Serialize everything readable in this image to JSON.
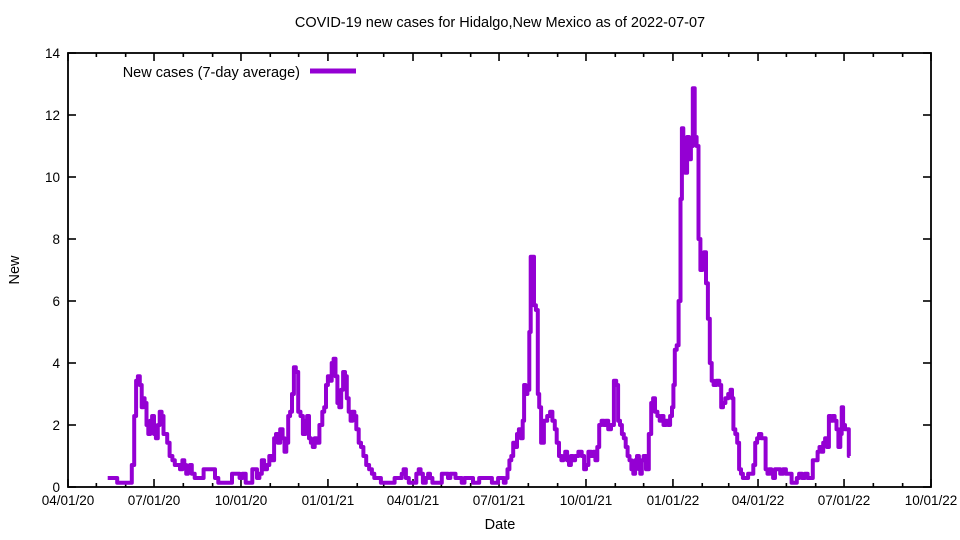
{
  "chart_data": {
    "type": "line",
    "title": "COVID-19 new cases for Hidalgo,New Mexico as of 2022-07-07",
    "xlabel": "Date",
    "ylabel": "New",
    "legend_label": "New cases (7-day average)",
    "legend_position": "top-left-inside",
    "grid": "off",
    "line_color": "#9400D3",
    "axis_color": "#000000",
    "ylim": [
      0,
      14
    ],
    "y_ticks": [
      0,
      2,
      4,
      6,
      8,
      10,
      12,
      14
    ],
    "xlim": [
      "2020-04-01",
      "2022-10-01"
    ],
    "x_ticks": [
      {
        "label": "04/01/20",
        "date": "2020-04-01"
      },
      {
        "label": "07/01/20",
        "date": "2020-07-01"
      },
      {
        "label": "10/01/20",
        "date": "2020-10-01"
      },
      {
        "label": "01/01/21",
        "date": "2021-01-01"
      },
      {
        "label": "04/01/21",
        "date": "2021-04-01"
      },
      {
        "label": "07/01/21",
        "date": "2021-07-01"
      },
      {
        "label": "10/01/21",
        "date": "2021-10-01"
      },
      {
        "label": "01/01/22",
        "date": "2022-01-01"
      },
      {
        "label": "04/01/22",
        "date": "2022-04-01"
      },
      {
        "label": "07/01/22",
        "date": "2022-07-01"
      },
      {
        "label": "10/01/22",
        "date": "2022-10-01"
      }
    ],
    "x_minor_ticks": "monthly",
    "points": [
      [
        "2020-05-13",
        0.29
      ],
      [
        "2020-05-22",
        0.29
      ],
      [
        "2020-05-24",
        0.14
      ],
      [
        "2020-06-06",
        0.14
      ],
      [
        "2020-06-09",
        0.71
      ],
      [
        "2020-06-11",
        2.29
      ],
      [
        "2020-06-13",
        3.43
      ],
      [
        "2020-06-15",
        3.57
      ],
      [
        "2020-06-17",
        3.29
      ],
      [
        "2020-06-19",
        2.57
      ],
      [
        "2020-06-20",
        2.86
      ],
      [
        "2020-06-22",
        2.71
      ],
      [
        "2020-06-24",
        2.0
      ],
      [
        "2020-06-26",
        1.71
      ],
      [
        "2020-06-28",
        2.14
      ],
      [
        "2020-06-30",
        2.29
      ],
      [
        "2020-07-02",
        1.71
      ],
      [
        "2020-07-04",
        1.57
      ],
      [
        "2020-07-06",
        2.0
      ],
      [
        "2020-07-08",
        2.43
      ],
      [
        "2020-07-10",
        2.29
      ],
      [
        "2020-07-12",
        1.71
      ],
      [
        "2020-07-14",
        1.71
      ],
      [
        "2020-07-16",
        1.43
      ],
      [
        "2020-07-19",
        1.0
      ],
      [
        "2020-07-22",
        0.86
      ],
      [
        "2020-07-24",
        0.71
      ],
      [
        "2020-07-27",
        0.71
      ],
      [
        "2020-07-30",
        0.57
      ],
      [
        "2020-08-01",
        0.86
      ],
      [
        "2020-08-03",
        0.71
      ],
      [
        "2020-08-05",
        0.43
      ],
      [
        "2020-08-07",
        0.57
      ],
      [
        "2020-08-09",
        0.71
      ],
      [
        "2020-08-11",
        0.43
      ],
      [
        "2020-08-15",
        0.29
      ],
      [
        "2020-08-21",
        0.29
      ],
      [
        "2020-08-24",
        0.57
      ],
      [
        "2020-09-02",
        0.57
      ],
      [
        "2020-09-05",
        0.29
      ],
      [
        "2020-09-09",
        0.14
      ],
      [
        "2020-09-20",
        0.14
      ],
      [
        "2020-09-23",
        0.43
      ],
      [
        "2020-09-28",
        0.43
      ],
      [
        "2020-10-01",
        0.29
      ],
      [
        "2020-10-04",
        0.43
      ],
      [
        "2020-10-08",
        0.14
      ],
      [
        "2020-10-12",
        0.14
      ],
      [
        "2020-10-14",
        0.57
      ],
      [
        "2020-10-17",
        0.57
      ],
      [
        "2020-10-19",
        0.29
      ],
      [
        "2020-10-22",
        0.43
      ],
      [
        "2020-10-24",
        0.86
      ],
      [
        "2020-10-27",
        0.57
      ],
      [
        "2020-10-30",
        0.71
      ],
      [
        "2020-11-01",
        1.0
      ],
      [
        "2020-11-04",
        0.86
      ],
      [
        "2020-11-06",
        1.57
      ],
      [
        "2020-11-08",
        1.71
      ],
      [
        "2020-11-10",
        1.43
      ],
      [
        "2020-11-13",
        1.86
      ],
      [
        "2020-11-15",
        1.57
      ],
      [
        "2020-11-17",
        1.14
      ],
      [
        "2020-11-19",
        1.43
      ],
      [
        "2020-11-21",
        2.29
      ],
      [
        "2020-11-23",
        2.43
      ],
      [
        "2020-11-25",
        3.0
      ],
      [
        "2020-11-27",
        3.86
      ],
      [
        "2020-11-29",
        3.71
      ],
      [
        "2020-12-02",
        2.43
      ],
      [
        "2020-12-04",
        2.29
      ],
      [
        "2020-12-07",
        1.71
      ],
      [
        "2020-12-09",
        2.14
      ],
      [
        "2020-12-11",
        2.29
      ],
      [
        "2020-12-13",
        1.57
      ],
      [
        "2020-12-15",
        1.43
      ],
      [
        "2020-12-17",
        1.29
      ],
      [
        "2020-12-19",
        1.57
      ],
      [
        "2020-12-21",
        1.43
      ],
      [
        "2020-12-25",
        2.0
      ],
      [
        "2020-12-27",
        2.43
      ],
      [
        "2020-12-29",
        2.57
      ],
      [
        "2020-12-31",
        3.29
      ],
      [
        "2021-01-02",
        3.57
      ],
      [
        "2021-01-04",
        3.43
      ],
      [
        "2021-01-06",
        4.0
      ],
      [
        "2021-01-08",
        4.14
      ],
      [
        "2021-01-10",
        3.57
      ],
      [
        "2021-01-12",
        2.71
      ],
      [
        "2021-01-14",
        2.57
      ],
      [
        "2021-01-16",
        3.14
      ],
      [
        "2021-01-18",
        3.71
      ],
      [
        "2021-01-20",
        3.57
      ],
      [
        "2021-01-22",
        2.86
      ],
      [
        "2021-01-24",
        2.43
      ],
      [
        "2021-01-26",
        2.14
      ],
      [
        "2021-01-28",
        2.43
      ],
      [
        "2021-01-30",
        2.29
      ],
      [
        "2021-02-01",
        1.86
      ],
      [
        "2021-02-04",
        1.43
      ],
      [
        "2021-02-06",
        1.29
      ],
      [
        "2021-02-09",
        1.0
      ],
      [
        "2021-02-12",
        0.71
      ],
      [
        "2021-02-15",
        0.57
      ],
      [
        "2021-02-18",
        0.43
      ],
      [
        "2021-02-20",
        0.29
      ],
      [
        "2021-02-25",
        0.29
      ],
      [
        "2021-02-27",
        0.14
      ],
      [
        "2021-03-11",
        0.14
      ],
      [
        "2021-03-14",
        0.29
      ],
      [
        "2021-03-19",
        0.29
      ],
      [
        "2021-03-21",
        0.43
      ],
      [
        "2021-03-23",
        0.57
      ],
      [
        "2021-03-26",
        0.29
      ],
      [
        "2021-03-29",
        0.14
      ],
      [
        "2021-04-03",
        0.14
      ],
      [
        "2021-04-06",
        0.43
      ],
      [
        "2021-04-08",
        0.57
      ],
      [
        "2021-04-10",
        0.43
      ],
      [
        "2021-04-13",
        0.14
      ],
      [
        "2021-04-16",
        0.29
      ],
      [
        "2021-04-18",
        0.43
      ],
      [
        "2021-04-20",
        0.29
      ],
      [
        "2021-04-23",
        0.14
      ],
      [
        "2021-04-30",
        0.14
      ],
      [
        "2021-05-03",
        0.43
      ],
      [
        "2021-05-07",
        0.43
      ],
      [
        "2021-05-09",
        0.29
      ],
      [
        "2021-05-12",
        0.43
      ],
      [
        "2021-05-15",
        0.43
      ],
      [
        "2021-05-17",
        0.29
      ],
      [
        "2021-05-21",
        0.29
      ],
      [
        "2021-05-24",
        0.14
      ],
      [
        "2021-05-27",
        0.29
      ],
      [
        "2021-06-02",
        0.29
      ],
      [
        "2021-06-05",
        0.14
      ],
      [
        "2021-06-09",
        0.14
      ],
      [
        "2021-06-11",
        0.29
      ],
      [
        "2021-06-22",
        0.29
      ],
      [
        "2021-06-25",
        0.14
      ],
      [
        "2021-06-29",
        0.14
      ],
      [
        "2021-07-01",
        0.29
      ],
      [
        "2021-07-05",
        0.29
      ],
      [
        "2021-07-07",
        0.14
      ],
      [
        "2021-07-09",
        0.29
      ],
      [
        "2021-07-11",
        0.57
      ],
      [
        "2021-07-13",
        0.86
      ],
      [
        "2021-07-15",
        1.0
      ],
      [
        "2021-07-17",
        1.43
      ],
      [
        "2021-07-19",
        1.29
      ],
      [
        "2021-07-21",
        1.71
      ],
      [
        "2021-07-23",
        1.86
      ],
      [
        "2021-07-25",
        1.57
      ],
      [
        "2021-07-27",
        2.14
      ],
      [
        "2021-07-28",
        3.29
      ],
      [
        "2021-07-30",
        3.0
      ],
      [
        "2021-08-01",
        3.14
      ],
      [
        "2021-08-03",
        5.0
      ],
      [
        "2021-08-04",
        7.43
      ],
      [
        "2021-08-06",
        7.43
      ],
      [
        "2021-08-08",
        5.86
      ],
      [
        "2021-08-10",
        5.71
      ],
      [
        "2021-08-12",
        3.0
      ],
      [
        "2021-08-13",
        2.57
      ],
      [
        "2021-08-16",
        1.43
      ],
      [
        "2021-08-19",
        2.14
      ],
      [
        "2021-08-23",
        2.29
      ],
      [
        "2021-08-25",
        2.43
      ],
      [
        "2021-08-28",
        2.14
      ],
      [
        "2021-08-30",
        1.86
      ],
      [
        "2021-09-01",
        1.43
      ],
      [
        "2021-09-04",
        1.0
      ],
      [
        "2021-09-06",
        0.86
      ],
      [
        "2021-09-08",
        1.0
      ],
      [
        "2021-09-10",
        1.14
      ],
      [
        "2021-09-12",
        0.86
      ],
      [
        "2021-09-14",
        0.71
      ],
      [
        "2021-09-16",
        1.0
      ],
      [
        "2021-09-18",
        0.86
      ],
      [
        "2021-09-21",
        1.0
      ],
      [
        "2021-09-25",
        1.14
      ],
      [
        "2021-09-28",
        1.0
      ],
      [
        "2021-09-30",
        0.57
      ],
      [
        "2021-10-02",
        0.71
      ],
      [
        "2021-10-05",
        1.14
      ],
      [
        "2021-10-08",
        1.0
      ],
      [
        "2021-10-10",
        1.14
      ],
      [
        "2021-10-12",
        0.86
      ],
      [
        "2021-10-14",
        1.29
      ],
      [
        "2021-10-16",
        2.0
      ],
      [
        "2021-10-19",
        2.14
      ],
      [
        "2021-10-21",
        2.0
      ],
      [
        "2021-10-23",
        2.14
      ],
      [
        "2021-10-26",
        1.86
      ],
      [
        "2021-10-29",
        2.0
      ],
      [
        "2021-11-01",
        3.43
      ],
      [
        "2021-11-03",
        3.29
      ],
      [
        "2021-11-05",
        2.14
      ],
      [
        "2021-11-07",
        2.0
      ],
      [
        "2021-11-09",
        1.71
      ],
      [
        "2021-11-11",
        1.57
      ],
      [
        "2021-11-13",
        1.29
      ],
      [
        "2021-11-15",
        1.0
      ],
      [
        "2021-11-17",
        0.86
      ],
      [
        "2021-11-19",
        0.57
      ],
      [
        "2021-11-21",
        0.43
      ],
      [
        "2021-11-23",
        0.86
      ],
      [
        "2021-11-25",
        1.0
      ],
      [
        "2021-11-27",
        0.57
      ],
      [
        "2021-11-28",
        0.43
      ],
      [
        "2021-11-30",
        0.86
      ],
      [
        "2021-12-02",
        1.0
      ],
      [
        "2021-12-05",
        0.57
      ],
      [
        "2021-12-08",
        1.71
      ],
      [
        "2021-12-10",
        2.71
      ],
      [
        "2021-12-12",
        2.86
      ],
      [
        "2021-12-14",
        2.43
      ],
      [
        "2021-12-17",
        2.29
      ],
      [
        "2021-12-19",
        2.14
      ],
      [
        "2021-12-21",
        2.29
      ],
      [
        "2021-12-23",
        2.0
      ],
      [
        "2021-12-26",
        2.14
      ],
      [
        "2021-12-28",
        2.0
      ],
      [
        "2021-12-30",
        2.29
      ],
      [
        "2022-01-01",
        2.57
      ],
      [
        "2022-01-02",
        3.29
      ],
      [
        "2022-01-04",
        4.43
      ],
      [
        "2022-01-06",
        4.57
      ],
      [
        "2022-01-08",
        6.0
      ],
      [
        "2022-01-10",
        9.29
      ],
      [
        "2022-01-11",
        11.57
      ],
      [
        "2022-01-13",
        11.0
      ],
      [
        "2022-01-15",
        10.14
      ],
      [
        "2022-01-17",
        11.29
      ],
      [
        "2022-01-19",
        10.57
      ],
      [
        "2022-01-21",
        11.0
      ],
      [
        "2022-01-23",
        12.86
      ],
      [
        "2022-01-25",
        11.29
      ],
      [
        "2022-01-27",
        11.0
      ],
      [
        "2022-01-29",
        8.0
      ],
      [
        "2022-01-31",
        7.0
      ],
      [
        "2022-02-02",
        7.14
      ],
      [
        "2022-02-04",
        7.57
      ],
      [
        "2022-02-06",
        6.57
      ],
      [
        "2022-02-08",
        5.43
      ],
      [
        "2022-02-10",
        4.0
      ],
      [
        "2022-02-12",
        3.43
      ],
      [
        "2022-02-14",
        3.29
      ],
      [
        "2022-02-18",
        3.43
      ],
      [
        "2022-02-20",
        3.29
      ],
      [
        "2022-02-22",
        2.57
      ],
      [
        "2022-02-24",
        2.71
      ],
      [
        "2022-02-27",
        2.86
      ],
      [
        "2022-03-02",
        3.0
      ],
      [
        "2022-03-04",
        3.14
      ],
      [
        "2022-03-05",
        2.86
      ],
      [
        "2022-03-07",
        1.86
      ],
      [
        "2022-03-09",
        1.71
      ],
      [
        "2022-03-11",
        1.43
      ],
      [
        "2022-03-13",
        0.57
      ],
      [
        "2022-03-15",
        0.43
      ],
      [
        "2022-03-17",
        0.29
      ],
      [
        "2022-03-20",
        0.29
      ],
      [
        "2022-03-23",
        0.43
      ],
      [
        "2022-03-26",
        0.43
      ],
      [
        "2022-03-28",
        0.71
      ],
      [
        "2022-03-30",
        1.43
      ],
      [
        "2022-04-01",
        1.57
      ],
      [
        "2022-04-03",
        1.71
      ],
      [
        "2022-04-06",
        1.57
      ],
      [
        "2022-04-08",
        1.57
      ],
      [
        "2022-04-10",
        0.57
      ],
      [
        "2022-04-12",
        0.43
      ],
      [
        "2022-04-14",
        0.57
      ],
      [
        "2022-04-16",
        0.43
      ],
      [
        "2022-04-18",
        0.29
      ],
      [
        "2022-04-20",
        0.57
      ],
      [
        "2022-04-23",
        0.57
      ],
      [
        "2022-04-26",
        0.43
      ],
      [
        "2022-04-29",
        0.57
      ],
      [
        "2022-05-02",
        0.43
      ],
      [
        "2022-05-05",
        0.43
      ],
      [
        "2022-05-08",
        0.14
      ],
      [
        "2022-05-11",
        0.14
      ],
      [
        "2022-05-13",
        0.29
      ],
      [
        "2022-05-16",
        0.43
      ],
      [
        "2022-05-19",
        0.29
      ],
      [
        "2022-05-22",
        0.43
      ],
      [
        "2022-05-25",
        0.29
      ],
      [
        "2022-05-28",
        0.29
      ],
      [
        "2022-05-30",
        0.86
      ],
      [
        "2022-06-02",
        0.86
      ],
      [
        "2022-06-04",
        1.14
      ],
      [
        "2022-06-06",
        1.29
      ],
      [
        "2022-06-08",
        1.14
      ],
      [
        "2022-06-10",
        1.43
      ],
      [
        "2022-06-12",
        1.57
      ],
      [
        "2022-06-14",
        1.29
      ],
      [
        "2022-06-16",
        2.29
      ],
      [
        "2022-06-18",
        2.14
      ],
      [
        "2022-06-20",
        2.29
      ],
      [
        "2022-06-22",
        2.14
      ],
      [
        "2022-06-24",
        1.86
      ],
      [
        "2022-06-26",
        1.29
      ],
      [
        "2022-06-28",
        1.71
      ],
      [
        "2022-06-29",
        2.57
      ],
      [
        "2022-07-01",
        2.0
      ],
      [
        "2022-07-03",
        1.86
      ],
      [
        "2022-07-05",
        1.86
      ],
      [
        "2022-07-07",
        1.0
      ]
    ]
  }
}
